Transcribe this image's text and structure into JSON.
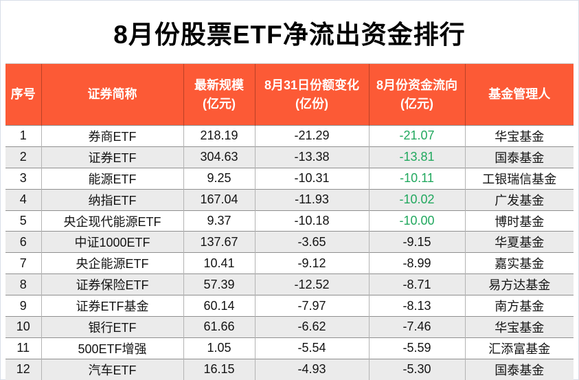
{
  "title": "8月份股票ETF净流出资金排行",
  "chart_data": {
    "type": "table",
    "title": "8月份股票ETF净流出资金排行",
    "columns": [
      {
        "key": "seq",
        "line1": "序号",
        "line2": ""
      },
      {
        "key": "name",
        "line1": "证券简称",
        "line2": ""
      },
      {
        "key": "scale",
        "line1": "最新规模",
        "line2": "(亿元)"
      },
      {
        "key": "share_change",
        "line1": "8月31日份额变化",
        "line2": "(亿份)"
      },
      {
        "key": "flow",
        "line1": "8月份资金流向",
        "line2": "(亿元)"
      },
      {
        "key": "manager",
        "line1": "基金管理人",
        "line2": ""
      }
    ],
    "rows": [
      {
        "seq": "1",
        "name": "券商ETF",
        "scale": "218.19",
        "share_change": "-21.29",
        "flow": "-21.07",
        "flow_green": true,
        "manager": "华宝基金"
      },
      {
        "seq": "2",
        "name": "证券ETF",
        "scale": "304.63",
        "share_change": "-13.38",
        "flow": "-13.81",
        "flow_green": true,
        "manager": "国泰基金"
      },
      {
        "seq": "3",
        "name": "能源ETF",
        "scale": "9.25",
        "share_change": "-10.31",
        "flow": "-10.11",
        "flow_green": true,
        "manager": "工银瑞信基金"
      },
      {
        "seq": "4",
        "name": "纳指ETF",
        "scale": "167.04",
        "share_change": "-11.93",
        "flow": "-10.02",
        "flow_green": true,
        "manager": "广发基金"
      },
      {
        "seq": "5",
        "name": "央企现代能源ETF",
        "scale": "9.37",
        "share_change": "-10.18",
        "flow": "-10.00",
        "flow_green": true,
        "manager": "博时基金"
      },
      {
        "seq": "6",
        "name": "中证1000ETF",
        "scale": "137.67",
        "share_change": "-3.65",
        "flow": "-9.15",
        "flow_green": false,
        "manager": "华夏基金"
      },
      {
        "seq": "7",
        "name": "央企能源ETF",
        "scale": "10.41",
        "share_change": "-9.12",
        "flow": "-8.99",
        "flow_green": false,
        "manager": "嘉实基金"
      },
      {
        "seq": "8",
        "name": "证券保险ETF",
        "scale": "57.39",
        "share_change": "-12.52",
        "flow": "-8.71",
        "flow_green": false,
        "manager": "易方达基金"
      },
      {
        "seq": "9",
        "name": "证券ETF基金",
        "scale": "60.14",
        "share_change": "-7.97",
        "flow": "-8.13",
        "flow_green": false,
        "manager": "南方基金"
      },
      {
        "seq": "10",
        "name": "银行ETF",
        "scale": "61.66",
        "share_change": "-6.62",
        "flow": "-7.46",
        "flow_green": false,
        "manager": "华宝基金"
      },
      {
        "seq": "11",
        "name": "500ETF增强",
        "scale": "1.05",
        "share_change": "-5.54",
        "flow": "-5.59",
        "flow_green": false,
        "manager": "汇添富基金"
      },
      {
        "seq": "12",
        "name": "汽车ETF",
        "scale": "16.15",
        "share_change": "-4.93",
        "flow": "-5.30",
        "flow_green": false,
        "manager": "国泰基金"
      }
    ]
  },
  "colors": {
    "header_bg": "#FC5A36",
    "header_text": "#FFFFFF",
    "alt_row_bg": "#EBEBEB",
    "outflow_green": "#21A85E",
    "body_text": "#141414",
    "title_text": "#000000"
  }
}
